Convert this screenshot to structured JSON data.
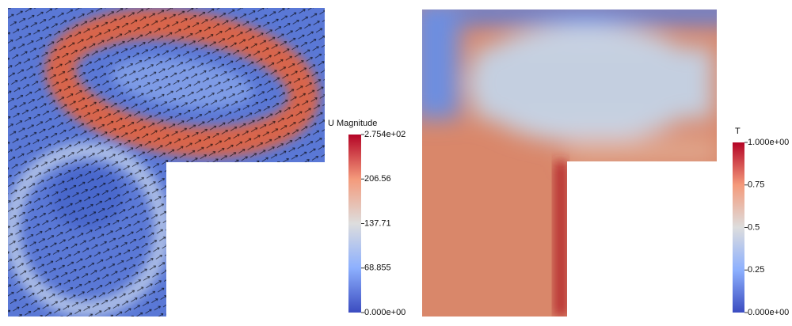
{
  "panels": [
    {
      "colorbar": {
        "title": "U Magnitude",
        "ticks": [
          {
            "value": 0,
            "label": "0.000e+00"
          },
          68.855,
          137.71,
          206.56,
          {
            "value": 275.4,
            "label": "2.754e+02"
          }
        ]
      }
    },
    {
      "colorbar": {
        "title": "T",
        "ticks": [
          {
            "value": 0,
            "label": "0.000e+00"
          },
          0.25,
          0.5,
          0.75,
          {
            "value": 1,
            "label": "1.000e+00"
          }
        ]
      }
    }
  ]
}
